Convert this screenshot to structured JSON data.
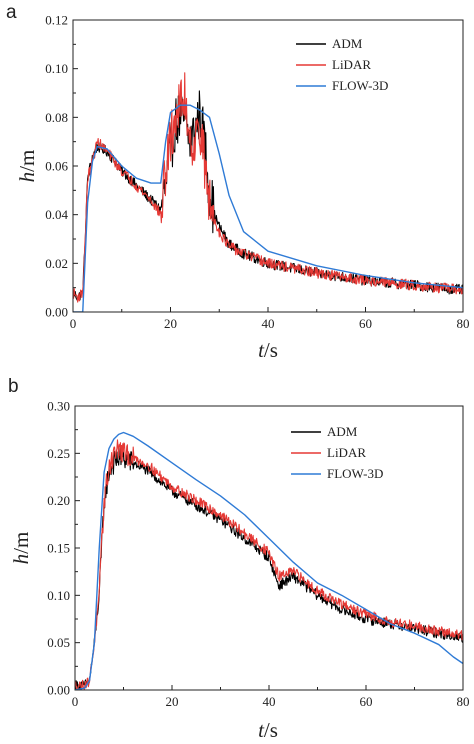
{
  "chart_data": [
    {
      "panel_label": "a",
      "type": "line",
      "xlabel_var": "t",
      "xlabel_unit": "/s",
      "ylabel_var": "h",
      "ylabel_unit": "/m",
      "xlim": [
        0,
        80
      ],
      "ylim": [
        0,
        0.12
      ],
      "x_ticks": [
        "0",
        "20",
        "40",
        "60",
        "80"
      ],
      "y_ticks": [
        "0.00",
        "0.02",
        "0.04",
        "0.06",
        "0.08",
        "0.10",
        "0.12"
      ],
      "grid": false,
      "legend_position": "top-right",
      "series": [
        {
          "name": "ADM",
          "color": "#000000",
          "x": [
            0,
            1,
            2,
            2.5,
            3,
            4,
            5,
            7,
            10,
            13,
            16,
            18,
            19,
            20,
            21,
            22,
            23,
            24,
            25,
            26,
            27,
            28,
            29,
            30,
            32,
            35,
            40,
            50,
            60,
            70,
            80
          ],
          "y": [
            0.008,
            0.006,
            0.008,
            0.03,
            0.055,
            0.064,
            0.068,
            0.066,
            0.058,
            0.052,
            0.046,
            0.042,
            0.052,
            0.065,
            0.078,
            0.08,
            0.078,
            0.07,
            0.075,
            0.082,
            0.07,
            0.05,
            0.04,
            0.035,
            0.028,
            0.024,
            0.02,
            0.016,
            0.013,
            0.011,
            0.009
          ]
        },
        {
          "name": "LiDAR",
          "color": "#e53935",
          "x": [
            0,
            1,
            2,
            2.5,
            3,
            4,
            5,
            7,
            10,
            13,
            16,
            18,
            19,
            20,
            21,
            22,
            23,
            24,
            25,
            26,
            27,
            28,
            29,
            30,
            32,
            35,
            40,
            50,
            60,
            70,
            80
          ],
          "y": [
            0.008,
            0.006,
            0.008,
            0.03,
            0.055,
            0.062,
            0.07,
            0.066,
            0.058,
            0.052,
            0.046,
            0.04,
            0.058,
            0.07,
            0.08,
            0.085,
            0.088,
            0.072,
            0.068,
            0.078,
            0.06,
            0.045,
            0.038,
            0.033,
            0.027,
            0.024,
            0.02,
            0.016,
            0.013,
            0.011,
            0.009
          ]
        },
        {
          "name": "FLOW-3D",
          "color": "#2f7bd6",
          "x": [
            0,
            2,
            3,
            4,
            5,
            7,
            10,
            13,
            16,
            18,
            19,
            20,
            22,
            24,
            26,
            28,
            30,
            32,
            35,
            40,
            50,
            60,
            70,
            80
          ],
          "y": [
            0.0,
            0.0,
            0.045,
            0.062,
            0.068,
            0.067,
            0.06,
            0.055,
            0.053,
            0.053,
            0.07,
            0.082,
            0.085,
            0.085,
            0.083,
            0.08,
            0.065,
            0.048,
            0.033,
            0.025,
            0.019,
            0.015,
            0.012,
            0.01
          ]
        }
      ]
    },
    {
      "panel_label": "b",
      "type": "line",
      "xlabel_var": "t",
      "xlabel_unit": "/s",
      "ylabel_var": "h",
      "ylabel_unit": "/m",
      "xlim": [
        0,
        80
      ],
      "ylim": [
        0,
        0.3
      ],
      "x_ticks": [
        "0",
        "20",
        "40",
        "60",
        "80"
      ],
      "y_ticks": [
        "0.00",
        "0.05",
        "0.10",
        "0.15",
        "0.20",
        "0.25",
        "0.30"
      ],
      "grid": false,
      "legend_position": "top-right",
      "series": [
        {
          "name": "ADM",
          "color": "#000000",
          "x": [
            0,
            2,
            3,
            4,
            5,
            6,
            7,
            8,
            9,
            10,
            12,
            15,
            20,
            25,
            30,
            35,
            40,
            42,
            45,
            50,
            55,
            60,
            65,
            70,
            75,
            80
          ],
          "y": [
            0.005,
            0.005,
            0.01,
            0.05,
            0.1,
            0.2,
            0.23,
            0.24,
            0.245,
            0.245,
            0.24,
            0.232,
            0.21,
            0.195,
            0.18,
            0.16,
            0.14,
            0.11,
            0.12,
            0.1,
            0.085,
            0.075,
            0.07,
            0.065,
            0.06,
            0.055
          ]
        },
        {
          "name": "LiDAR",
          "color": "#e53935",
          "x": [
            0,
            2,
            3,
            4,
            5,
            6,
            7,
            8,
            9,
            10,
            12,
            15,
            20,
            25,
            30,
            35,
            40,
            42,
            45,
            50,
            55,
            60,
            65,
            70,
            75,
            80
          ],
          "y": [
            0.005,
            0.005,
            0.01,
            0.05,
            0.1,
            0.2,
            0.235,
            0.25,
            0.255,
            0.25,
            0.245,
            0.238,
            0.215,
            0.2,
            0.185,
            0.165,
            0.145,
            0.12,
            0.125,
            0.105,
            0.09,
            0.08,
            0.072,
            0.068,
            0.062,
            0.058
          ]
        },
        {
          "name": "FLOW-3D",
          "color": "#2f7bd6",
          "x": [
            0,
            2,
            3,
            4,
            5,
            6,
            7,
            8,
            9,
            10,
            12,
            15,
            20,
            25,
            30,
            35,
            40,
            45,
            50,
            55,
            60,
            65,
            70,
            75,
            78,
            80
          ],
          "y": [
            0.0,
            0.002,
            0.01,
            0.05,
            0.15,
            0.23,
            0.255,
            0.265,
            0.27,
            0.272,
            0.268,
            0.258,
            0.24,
            0.222,
            0.205,
            0.185,
            0.16,
            0.135,
            0.113,
            0.1,
            0.085,
            0.07,
            0.06,
            0.048,
            0.035,
            0.028
          ]
        }
      ]
    }
  ]
}
